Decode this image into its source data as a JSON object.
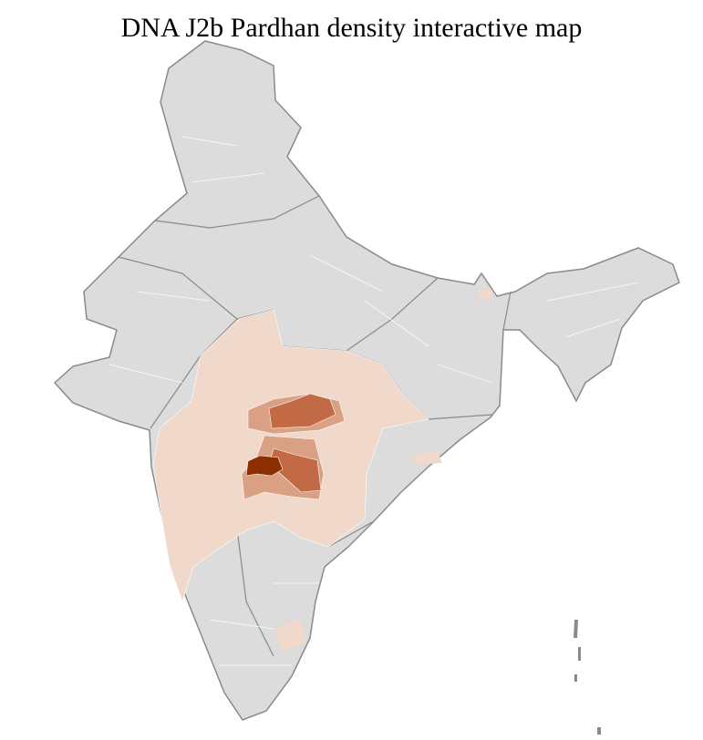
{
  "title": "DNA J2b Pardhan density interactive map",
  "colors": {
    "background_region": "#dcdcdc",
    "region_border": "#ffffff",
    "state_border": "#8a8a8a",
    "level_1": "#f0d8ca",
    "level_2": "#d9a084",
    "level_3": "#c26a45",
    "level_4": "#8b2e00"
  }
}
